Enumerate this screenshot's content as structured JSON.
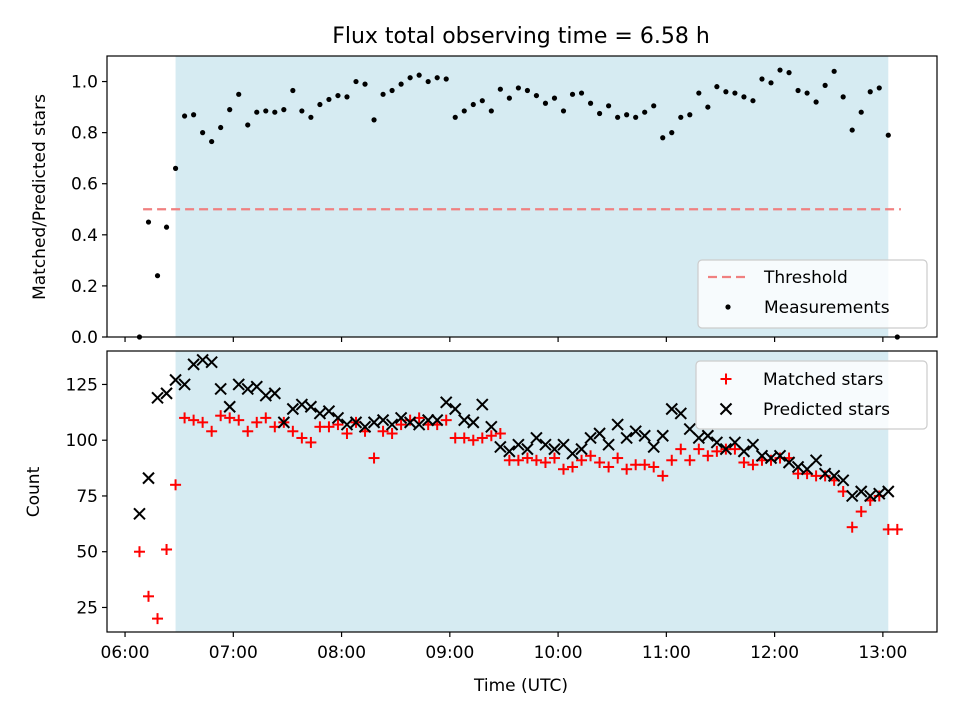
{
  "title": "Flux total observing time = 6.58 h",
  "xlabel": "Time (UTC)",
  "colors": {
    "shade": "#add8e6",
    "threshold": "#f08080",
    "matched": "#ff0000",
    "predicted": "#000000",
    "measurement": "#000000"
  },
  "chart_data": [
    {
      "type": "scatter",
      "panel": "top",
      "ylabel": "Matched/Predicted stars",
      "xlim": [
        "05:50",
        "13:30"
      ],
      "ylim": [
        0.0,
        1.1
      ],
      "yticks": [
        0.0,
        0.2,
        0.4,
        0.6,
        0.8,
        1.0
      ],
      "ytick_labels": [
        "0.0",
        "0.2",
        "0.4",
        "0.6",
        "0.8",
        "1.0"
      ],
      "shaded_span": [
        "06:28",
        "13:03"
      ],
      "grid": false,
      "legend": {
        "placement": "lower right",
        "entries": [
          "Threshold",
          "Measurements"
        ]
      },
      "threshold": {
        "name": "Threshold",
        "y": 0.5,
        "x_range": [
          "06:10",
          "13:10"
        ],
        "style": "dashed"
      },
      "series": [
        {
          "name": "Measurements",
          "marker": "dot",
          "x": [
            "06:08",
            "06:13",
            "06:18",
            "06:23",
            "06:28",
            "06:33",
            "06:38",
            "06:43",
            "06:48",
            "06:53",
            "06:58",
            "07:03",
            "07:08",
            "07:13",
            "07:18",
            "07:23",
            "07:28",
            "07:33",
            "07:38",
            "07:43",
            "07:48",
            "07:53",
            "07:58",
            "08:03",
            "08:08",
            "08:13",
            "08:18",
            "08:23",
            "08:28",
            "08:33",
            "08:38",
            "08:43",
            "08:48",
            "08:53",
            "08:58",
            "09:03",
            "09:08",
            "09:13",
            "09:18",
            "09:23",
            "09:28",
            "09:33",
            "09:38",
            "09:43",
            "09:48",
            "09:53",
            "09:58",
            "10:03",
            "10:08",
            "10:13",
            "10:18",
            "10:23",
            "10:28",
            "10:33",
            "10:38",
            "10:43",
            "10:48",
            "10:53",
            "10:58",
            "11:03",
            "11:08",
            "11:13",
            "11:18",
            "11:23",
            "11:28",
            "11:33",
            "11:38",
            "11:43",
            "11:48",
            "11:53",
            "11:58",
            "12:03",
            "12:08",
            "12:13",
            "12:18",
            "12:23",
            "12:28",
            "12:33",
            "12:38",
            "12:43",
            "12:48",
            "12:53",
            "12:58",
            "13:03",
            "13:08"
          ],
          "y": [
            0.0,
            0.45,
            0.24,
            0.43,
            0.66,
            0.865,
            0.87,
            0.8,
            0.765,
            0.82,
            0.89,
            0.95,
            0.83,
            0.88,
            0.885,
            0.88,
            0.89,
            0.965,
            0.885,
            0.86,
            0.91,
            0.93,
            0.945,
            0.94,
            1.0,
            0.99,
            0.85,
            0.95,
            0.965,
            0.99,
            1.015,
            1.025,
            1.0,
            1.015,
            1.01,
            0.86,
            0.885,
            0.91,
            0.925,
            0.885,
            0.97,
            0.935,
            0.975,
            0.965,
            0.945,
            0.915,
            0.935,
            0.885,
            0.95,
            0.955,
            0.915,
            0.875,
            0.905,
            0.86,
            0.87,
            0.86,
            0.88,
            0.905,
            0.78,
            0.8,
            0.86,
            0.87,
            0.955,
            0.9,
            0.98,
            0.96,
            0.955,
            0.94,
            0.925,
            1.01,
            0.995,
            1.045,
            1.035,
            0.965,
            0.955,
            0.92,
            0.985,
            1.04,
            0.94,
            0.81,
            0.88,
            0.96,
            0.975,
            0.79,
            0.0
          ]
        }
      ]
    },
    {
      "type": "scatter",
      "panel": "bottom",
      "ylabel": "Count",
      "xlim": [
        "05:50",
        "13:30"
      ],
      "ylim": [
        14,
        140
      ],
      "yticks": [
        25,
        50,
        75,
        100,
        125
      ],
      "ytick_labels": [
        "25",
        "50",
        "75",
        "100",
        "125"
      ],
      "xtick_labels": [
        "06:00",
        "07:00",
        "08:00",
        "09:00",
        "10:00",
        "11:00",
        "12:00",
        "13:00"
      ],
      "shaded_span": [
        "06:28",
        "13:03"
      ],
      "grid": false,
      "legend": {
        "placement": "upper right",
        "entries": [
          "Matched stars",
          "Predicted stars"
        ]
      },
      "series": [
        {
          "name": "Matched stars",
          "marker": "plus",
          "x": [
            "06:08",
            "06:13",
            "06:18",
            "06:23",
            "06:28",
            "06:33",
            "06:38",
            "06:43",
            "06:48",
            "06:53",
            "06:58",
            "07:03",
            "07:08",
            "07:13",
            "07:18",
            "07:23",
            "07:28",
            "07:33",
            "07:38",
            "07:43",
            "07:48",
            "07:53",
            "07:58",
            "08:03",
            "08:08",
            "08:13",
            "08:18",
            "08:23",
            "08:28",
            "08:33",
            "08:38",
            "08:43",
            "08:48",
            "08:53",
            "08:58",
            "09:03",
            "09:08",
            "09:13",
            "09:18",
            "09:23",
            "09:28",
            "09:33",
            "09:38",
            "09:43",
            "09:48",
            "09:53",
            "09:58",
            "10:03",
            "10:08",
            "10:13",
            "10:18",
            "10:23",
            "10:28",
            "10:33",
            "10:38",
            "10:43",
            "10:48",
            "10:53",
            "10:58",
            "11:03",
            "11:08",
            "11:13",
            "11:18",
            "11:23",
            "11:28",
            "11:33",
            "11:38",
            "11:43",
            "11:48",
            "11:53",
            "11:58",
            "12:03",
            "12:08",
            "12:13",
            "12:18",
            "12:23",
            "12:28",
            "12:33",
            "12:38",
            "12:43",
            "12:48",
            "12:53",
            "12:58",
            "13:03",
            "13:08"
          ],
          "y": [
            50,
            30,
            20,
            51,
            80,
            110,
            109,
            108,
            104,
            111,
            110,
            109,
            104,
            108,
            110,
            106,
            108,
            104,
            101,
            99,
            106,
            106,
            107,
            103,
            108,
            104,
            92,
            104,
            103,
            107,
            109,
            110,
            107,
            107,
            109,
            101,
            101,
            100,
            101,
            102,
            103,
            91,
            91,
            92,
            91,
            90,
            92,
            87,
            88,
            91,
            93,
            90,
            88,
            92,
            87,
            89,
            89,
            88,
            84,
            91,
            96,
            91,
            96,
            93,
            95,
            96,
            96,
            90,
            89,
            91,
            91,
            92,
            92,
            85,
            85,
            84,
            84,
            82,
            77,
            61,
            68,
            73,
            75,
            60,
            60
          ]
        },
        {
          "name": "Predicted stars",
          "marker": "x",
          "x": [
            "06:08",
            "06:13",
            "06:18",
            "06:23",
            "06:28",
            "06:33",
            "06:38",
            "06:43",
            "06:48",
            "06:53",
            "06:58",
            "07:03",
            "07:08",
            "07:13",
            "07:18",
            "07:23",
            "07:28",
            "07:33",
            "07:38",
            "07:43",
            "07:48",
            "07:53",
            "07:58",
            "08:03",
            "08:08",
            "08:13",
            "08:18",
            "08:23",
            "08:28",
            "08:33",
            "08:38",
            "08:43",
            "08:48",
            "08:53",
            "08:58",
            "09:03",
            "09:08",
            "09:13",
            "09:18",
            "09:23",
            "09:28",
            "09:33",
            "09:38",
            "09:43",
            "09:48",
            "09:53",
            "09:58",
            "10:03",
            "10:08",
            "10:13",
            "10:18",
            "10:23",
            "10:28",
            "10:33",
            "10:38",
            "10:43",
            "10:48",
            "10:53",
            "10:58",
            "11:03",
            "11:08",
            "11:13",
            "11:18",
            "11:23",
            "11:28",
            "11:33",
            "11:38",
            "11:43",
            "11:48",
            "11:53",
            "11:58",
            "12:03",
            "12:08",
            "12:13",
            "12:18",
            "12:23",
            "12:28",
            "12:33",
            "12:38",
            "12:43",
            "12:48",
            "12:53",
            "12:58",
            "13:03"
          ],
          "y": [
            67,
            83,
            119,
            121,
            127,
            125,
            134,
            136,
            135,
            123,
            115,
            125,
            123,
            124,
            120,
            121,
            108,
            114,
            116,
            115,
            112,
            113,
            110,
            107,
            108,
            106,
            108,
            109,
            107,
            110,
            108,
            107,
            109,
            109,
            117,
            114,
            109,
            108,
            116,
            106,
            97,
            95,
            98,
            96,
            101,
            98,
            96,
            98,
            94,
            96,
            101,
            103,
            98,
            107,
            101,
            104,
            102,
            97,
            102,
            114,
            112,
            105,
            101,
            102,
            99,
            96,
            99,
            95,
            98,
            93,
            92,
            93,
            90,
            88,
            87,
            91,
            85,
            84,
            82,
            75,
            77,
            75,
            76,
            77
          ]
        }
      ]
    }
  ]
}
